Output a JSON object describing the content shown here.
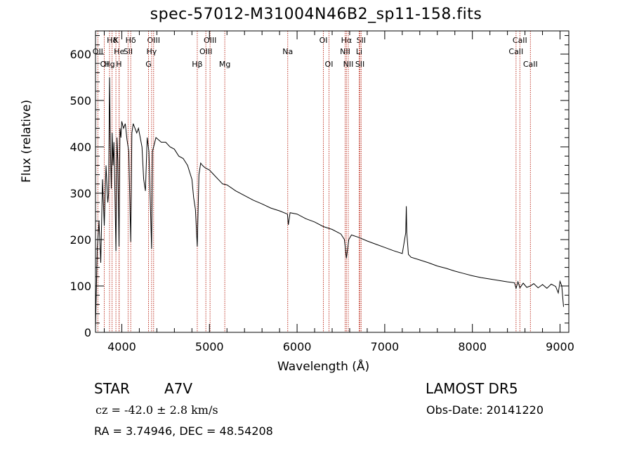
{
  "title": "spec-57012-M31004N46B2_sp11-158.fits",
  "info": {
    "class": "STAR",
    "subclass": "A7V",
    "survey": "LAMOST  DR5",
    "cz": "cz = -42.0 ± 2.8 km/s",
    "obs_date": "Obs-Date: 20141220",
    "coords": "RA =   3.74946, DEC =  48.54208"
  },
  "colors": {
    "spectrum": "#000000",
    "line_marker": "#c0392b",
    "axis": "#000000"
  },
  "chart_data": {
    "type": "line",
    "title": "spec-57012-M31004N46B2_sp11-158.fits",
    "xlabel": "Wavelength (Å)",
    "ylabel": "Flux (relative)",
    "xlim": [
      3700,
      9100
    ],
    "ylim": [
      0,
      650
    ],
    "x_ticks": [
      4000,
      5000,
      6000,
      7000,
      8000,
      9000
    ],
    "y_ticks": [
      0,
      100,
      200,
      300,
      400,
      500,
      600
    ],
    "grid": false,
    "series": [
      {
        "x": [
          3700,
          3720,
          3740,
          3760,
          3780,
          3800,
          3820,
          3840,
          3850,
          3860,
          3870,
          3880,
          3890,
          3900,
          3910,
          3920,
          3933,
          3945,
          3955,
          3968,
          3980,
          3990,
          4000,
          4020,
          4040,
          4060,
          4080,
          4102,
          4115,
          4130,
          4150,
          4170,
          4190,
          4210,
          4230,
          4250,
          4270,
          4290,
          4310,
          4330,
          4340,
          4350,
          4370,
          4390,
          4420,
          4450,
          4500,
          4550,
          4600,
          4650,
          4700,
          4750,
          4800,
          4820,
          4840,
          4861,
          4880,
          4900,
          4920,
          4950,
          5000,
          5050,
          5100,
          5150,
          5200,
          5300,
          5400,
          5500,
          5600,
          5700,
          5800,
          5890,
          5900,
          5920,
          6000,
          6100,
          6200,
          6300,
          6400,
          6500,
          6540,
          6563,
          6590,
          6620,
          6700,
          6800,
          6900,
          7000,
          7100,
          7200,
          7240,
          7246,
          7252,
          7270,
          7300,
          7400,
          7500,
          7600,
          7700,
          7800,
          7900,
          8000,
          8100,
          8200,
          8300,
          8400,
          8480,
          8498,
          8520,
          8542,
          8580,
          8620,
          8662,
          8700,
          8750,
          8800,
          8850,
          8900,
          8950,
          8980,
          9000,
          9020,
          9040
        ],
        "y": [
          10,
          180,
          240,
          150,
          330,
          230,
          360,
          280,
          300,
          550,
          400,
          310,
          430,
          360,
          410,
          320,
          175,
          420,
          370,
          185,
          440,
          420,
          455,
          440,
          450,
          415,
          390,
          195,
          430,
          450,
          440,
          430,
          440,
          420,
          400,
          330,
          305,
          420,
          390,
          250,
          180,
          390,
          405,
          420,
          415,
          410,
          410,
          400,
          395,
          380,
          375,
          360,
          330,
          290,
          265,
          185,
          340,
          365,
          360,
          355,
          350,
          340,
          330,
          320,
          318,
          305,
          295,
          285,
          277,
          268,
          262,
          255,
          232,
          258,
          255,
          245,
          238,
          228,
          222,
          212,
          200,
          160,
          200,
          210,
          205,
          197,
          190,
          183,
          176,
          170,
          215,
          272,
          215,
          168,
          162,
          156,
          150,
          143,
          138,
          132,
          127,
          122,
          118,
          115,
          112,
          109,
          107,
          95,
          109,
          96,
          106,
          97,
          100,
          105,
          96,
          103,
          95,
          104,
          99,
          85,
          110,
          100,
          55
        ]
      }
    ],
    "line_markers": [
      {
        "label": "Hδ",
        "x": 3889,
        "row": 0
      },
      {
        "label": "K",
        "x": 3933,
        "row": 0
      },
      {
        "label": "Hδ",
        "x": 4102,
        "row": 0
      },
      {
        "label": "OIII",
        "x": 4363,
        "row": 0
      },
      {
        "label": "OIII",
        "x": 5007,
        "row": 0
      },
      {
        "label": "OI",
        "x": 6300,
        "row": 0
      },
      {
        "label": "Hα",
        "x": 6563,
        "row": 0
      },
      {
        "label": "SII",
        "x": 6731,
        "row": 0
      },
      {
        "label": "CaII",
        "x": 8542,
        "row": 0
      },
      {
        "label": "OII",
        "x": 3727,
        "row": 1
      },
      {
        "label": "He",
        "x": 3970,
        "row": 1
      },
      {
        "label": "SII",
        "x": 4072,
        "row": 1
      },
      {
        "label": "Hγ",
        "x": 4340,
        "row": 1
      },
      {
        "label": "OIII",
        "x": 4959,
        "row": 1
      },
      {
        "label": "Na",
        "x": 5893,
        "row": 1
      },
      {
        "label": "NII",
        "x": 6548,
        "row": 1
      },
      {
        "label": "Li",
        "x": 6708,
        "row": 1
      },
      {
        "label": "CaII",
        "x": 8498,
        "row": 1
      },
      {
        "label": "OI",
        "x": 3800,
        "row": 2
      },
      {
        "label": "Hg",
        "x": 3860,
        "row": 2
      },
      {
        "label": "H",
        "x": 3968,
        "row": 2
      },
      {
        "label": "G",
        "x": 4305,
        "row": 2
      },
      {
        "label": "Hβ",
        "x": 4861,
        "row": 2
      },
      {
        "label": "Mg",
        "x": 5175,
        "row": 2
      },
      {
        "label": "OI",
        "x": 6364,
        "row": 2
      },
      {
        "label": "NII",
        "x": 6584,
        "row": 2
      },
      {
        "label": "SII",
        "x": 6717,
        "row": 2
      },
      {
        "label": "CaII",
        "x": 8662,
        "row": 2
      }
    ]
  }
}
